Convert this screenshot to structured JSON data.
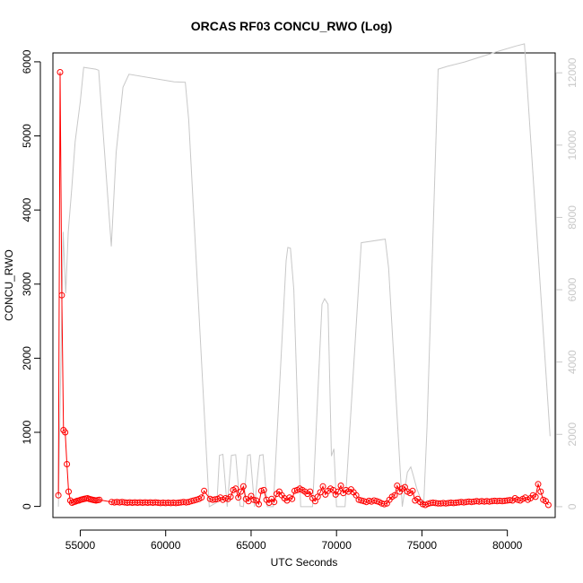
{
  "chart_data": {
    "type": "line",
    "title": "ORCAS RF03 CONCU_RWO (Log)",
    "xlabel": "UTC Seconds",
    "ylabel": "CONCU_RWO",
    "xlim": [
      53400,
      82800
    ],
    "ylim": [
      -150,
      6120
    ],
    "y2lim": [
      -300,
      12550
    ],
    "x_ticks": [
      55000,
      60000,
      65000,
      70000,
      75000,
      80000
    ],
    "y_ticks": [
      0,
      1000,
      2000,
      3000,
      4000,
      5000,
      6000
    ],
    "y2_ticks": [
      0,
      2000,
      4000,
      6000,
      8000,
      10000,
      12000
    ],
    "grid": false,
    "colors": {
      "primary": "#ff0000",
      "secondary": "#c8c8c8",
      "axis": "#000000"
    },
    "series": [
      {
        "axis": "left",
        "style": "line+points",
        "points": [
          [
            53720,
            150
          ],
          [
            53820,
            5860
          ],
          [
            53920,
            2850
          ],
          [
            54020,
            1030
          ],
          [
            54120,
            1000
          ],
          [
            54220,
            570
          ],
          [
            54320,
            200
          ],
          [
            54420,
            80
          ],
          [
            54520,
            50
          ],
          [
            54620,
            60
          ],
          [
            54720,
            65
          ],
          [
            54820,
            75
          ],
          [
            54920,
            80
          ],
          [
            55020,
            90
          ],
          [
            55120,
            95
          ],
          [
            55220,
            100
          ],
          [
            55320,
            105
          ],
          [
            55420,
            110
          ],
          [
            55520,
            100
          ],
          [
            55620,
            95
          ],
          [
            55720,
            90
          ],
          [
            55820,
            85
          ],
          [
            55920,
            80
          ],
          [
            56020,
            85
          ],
          [
            56120,
            90
          ],
          [
            56840,
            60
          ],
          [
            57000,
            55
          ],
          [
            57150,
            60
          ],
          [
            57300,
            55
          ],
          [
            57450,
            60
          ],
          [
            57600,
            55
          ],
          [
            57750,
            50
          ],
          [
            57900,
            55
          ],
          [
            58050,
            50
          ],
          [
            58200,
            55
          ],
          [
            58350,
            50
          ],
          [
            58500,
            55
          ],
          [
            58650,
            50
          ],
          [
            58800,
            55
          ],
          [
            58950,
            50
          ],
          [
            59100,
            55
          ],
          [
            59250,
            50
          ],
          [
            59400,
            55
          ],
          [
            59550,
            50
          ],
          [
            59700,
            45
          ],
          [
            59850,
            50
          ],
          [
            60000,
            45
          ],
          [
            60150,
            50
          ],
          [
            60300,
            45
          ],
          [
            60450,
            50
          ],
          [
            60600,
            45
          ],
          [
            60750,
            50
          ],
          [
            60900,
            55
          ],
          [
            61050,
            60
          ],
          [
            61200,
            55
          ],
          [
            61350,
            60
          ],
          [
            61500,
            70
          ],
          [
            61650,
            80
          ],
          [
            61800,
            90
          ],
          [
            61950,
            100
          ],
          [
            62100,
            120
          ],
          [
            62250,
            210
          ],
          [
            62600,
            100
          ],
          [
            62750,
            90
          ],
          [
            62900,
            95
          ],
          [
            63050,
            100
          ],
          [
            63200,
            120
          ],
          [
            63350,
            90
          ],
          [
            63500,
            110
          ],
          [
            63650,
            100
          ],
          [
            63800,
            130
          ],
          [
            63950,
            220
          ],
          [
            64100,
            240
          ],
          [
            64250,
            120
          ],
          [
            64400,
            200
          ],
          [
            64550,
            270
          ],
          [
            64700,
            100
          ],
          [
            64850,
            70
          ],
          [
            65000,
            140
          ],
          [
            65150,
            90
          ],
          [
            65300,
            80
          ],
          [
            65450,
            30
          ],
          [
            65600,
            210
          ],
          [
            65750,
            220
          ],
          [
            65900,
            90
          ],
          [
            66050,
            50
          ],
          [
            66200,
            100
          ],
          [
            66350,
            60
          ],
          [
            66500,
            170
          ],
          [
            66650,
            200
          ],
          [
            66800,
            150
          ],
          [
            66950,
            110
          ],
          [
            67100,
            80
          ],
          [
            67250,
            120
          ],
          [
            67400,
            100
          ],
          [
            67550,
            210
          ],
          [
            67700,
            220
          ],
          [
            67850,
            240
          ],
          [
            68000,
            220
          ],
          [
            68150,
            200
          ],
          [
            68300,
            170
          ],
          [
            68450,
            200
          ],
          [
            68600,
            110
          ],
          [
            68750,
            70
          ],
          [
            68900,
            130
          ],
          [
            69050,
            190
          ],
          [
            69200,
            270
          ],
          [
            69350,
            160
          ],
          [
            69500,
            210
          ],
          [
            69650,
            240
          ],
          [
            69800,
            220
          ],
          [
            69950,
            160
          ],
          [
            70100,
            200
          ],
          [
            70250,
            280
          ],
          [
            70400,
            180
          ],
          [
            70550,
            220
          ],
          [
            70700,
            200
          ],
          [
            70850,
            230
          ],
          [
            71000,
            190
          ],
          [
            71150,
            150
          ],
          [
            71300,
            90
          ],
          [
            71450,
            80
          ],
          [
            71600,
            70
          ],
          [
            71750,
            60
          ],
          [
            71900,
            75
          ],
          [
            72050,
            65
          ],
          [
            72200,
            80
          ],
          [
            72350,
            70
          ],
          [
            72500,
            60
          ],
          [
            72650,
            40
          ],
          [
            72800,
            30
          ],
          [
            72950,
            40
          ],
          [
            73100,
            90
          ],
          [
            73250,
            130
          ],
          [
            73400,
            150
          ],
          [
            73550,
            280
          ],
          [
            73700,
            200
          ],
          [
            73850,
            240
          ],
          [
            74000,
            260
          ],
          [
            74150,
            200
          ],
          [
            74300,
            180
          ],
          [
            74450,
            210
          ],
          [
            74600,
            80
          ],
          [
            74750,
            100
          ],
          [
            74900,
            60
          ],
          [
            75050,
            30
          ],
          [
            75200,
            20
          ],
          [
            75350,
            35
          ],
          [
            75500,
            45
          ],
          [
            75650,
            50
          ],
          [
            75800,
            45
          ],
          [
            75950,
            40
          ],
          [
            76100,
            40
          ],
          [
            76250,
            45
          ],
          [
            76400,
            40
          ],
          [
            76550,
            45
          ],
          [
            76700,
            50
          ],
          [
            76850,
            45
          ],
          [
            77000,
            50
          ],
          [
            77150,
            55
          ],
          [
            77300,
            60
          ],
          [
            77450,
            55
          ],
          [
            77600,
            60
          ],
          [
            77750,
            65
          ],
          [
            77900,
            60
          ],
          [
            78050,
            65
          ],
          [
            78200,
            70
          ],
          [
            78350,
            65
          ],
          [
            78500,
            70
          ],
          [
            78650,
            65
          ],
          [
            78800,
            70
          ],
          [
            78950,
            65
          ],
          [
            79100,
            70
          ],
          [
            79250,
            75
          ],
          [
            79400,
            70
          ],
          [
            79550,
            75
          ],
          [
            79700,
            70
          ],
          [
            79850,
            75
          ],
          [
            80000,
            80
          ],
          [
            80150,
            85
          ],
          [
            80300,
            80
          ],
          [
            80450,
            110
          ],
          [
            80600,
            90
          ],
          [
            80750,
            80
          ],
          [
            80900,
            100
          ],
          [
            81050,
            120
          ],
          [
            81200,
            90
          ],
          [
            81350,
            110
          ],
          [
            81500,
            150
          ],
          [
            81650,
            130
          ],
          [
            81800,
            300
          ],
          [
            81950,
            200
          ],
          [
            82100,
            90
          ],
          [
            82250,
            70
          ],
          [
            82400,
            20
          ]
        ]
      },
      {
        "axis": "right",
        "style": "line",
        "points": [
          [
            53720,
            0
          ],
          [
            54000,
            7600
          ],
          [
            54150,
            5900
          ],
          [
            54300,
            7600
          ],
          [
            54500,
            8800
          ],
          [
            54700,
            10100
          ],
          [
            55000,
            11200
          ],
          [
            55200,
            12150
          ],
          [
            55900,
            12100
          ],
          [
            56080,
            12070
          ],
          [
            56820,
            7200
          ],
          [
            57100,
            9800
          ],
          [
            57500,
            11600
          ],
          [
            57850,
            11960
          ],
          [
            60500,
            11750
          ],
          [
            61150,
            11740
          ],
          [
            61350,
            10700
          ],
          [
            62550,
            0
          ],
          [
            63000,
            120
          ],
          [
            63150,
            1420
          ],
          [
            63350,
            1450
          ],
          [
            63600,
            0
          ],
          [
            63850,
            1420
          ],
          [
            64100,
            1440
          ],
          [
            64350,
            20
          ],
          [
            64550,
            0
          ],
          [
            64800,
            1420
          ],
          [
            64950,
            1440
          ],
          [
            65200,
            0
          ],
          [
            65500,
            1420
          ],
          [
            65700,
            1440
          ],
          [
            65950,
            0
          ],
          [
            66300,
            0
          ],
          [
            67050,
            6800
          ],
          [
            67150,
            7170
          ],
          [
            67300,
            7150
          ],
          [
            67500,
            6000
          ],
          [
            67900,
            0
          ],
          [
            68600,
            0
          ],
          [
            69150,
            5600
          ],
          [
            69300,
            5750
          ],
          [
            69500,
            5600
          ],
          [
            69700,
            1400
          ],
          [
            69850,
            1600
          ],
          [
            70000,
            0
          ],
          [
            70500,
            0
          ],
          [
            71450,
            7300
          ],
          [
            72850,
            7400
          ],
          [
            73050,
            6600
          ],
          [
            73850,
            0
          ],
          [
            74150,
            950
          ],
          [
            74350,
            1100
          ],
          [
            74500,
            850
          ],
          [
            74700,
            500
          ],
          [
            75100,
            0
          ],
          [
            75300,
            2200
          ],
          [
            75950,
            12100
          ],
          [
            76500,
            12180
          ],
          [
            77500,
            12300
          ],
          [
            78500,
            12450
          ],
          [
            79500,
            12600
          ],
          [
            80500,
            12740
          ],
          [
            81000,
            12800
          ],
          [
            82500,
            1950
          ]
        ]
      }
    ]
  }
}
